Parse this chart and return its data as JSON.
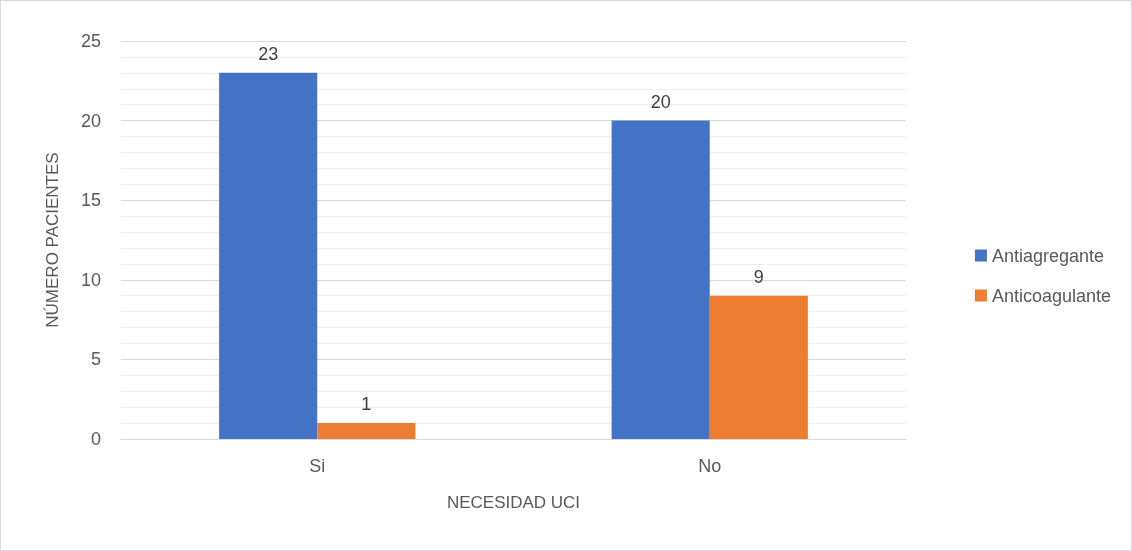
{
  "chart_data": {
    "type": "bar",
    "xlabel": "NECESIDAD UCI",
    "ylabel": "NÚMERO PACIENTES",
    "categories": [
      "Si",
      "No"
    ],
    "series": [
      {
        "name": "Antiagregante",
        "color": "#4472c4",
        "values": [
          23,
          20
        ]
      },
      {
        "name": "Anticoagulante",
        "color": "#ed7d31",
        "values": [
          1,
          9
        ]
      }
    ],
    "ylim": [
      0,
      25
    ],
    "yticks": [
      0,
      5,
      10,
      15,
      20,
      25
    ],
    "grid": true,
    "legend": "right",
    "data_labels": true
  }
}
